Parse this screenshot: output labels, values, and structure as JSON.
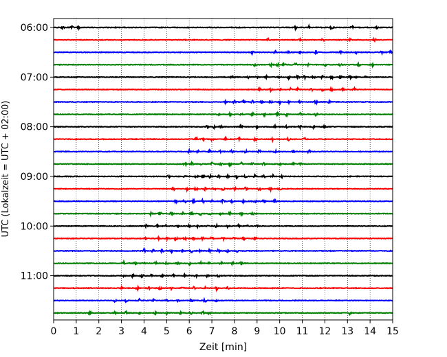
{
  "chart_data": {
    "type": "line",
    "title": "",
    "xlabel": "Zeit  [min]",
    "ylabel": "UTC (Lokalzeit = UTC + 02:00)",
    "xlim": [
      0,
      15
    ],
    "x_ticks": [
      "0",
      "1",
      "2",
      "3",
      "4",
      "5",
      "6",
      "7",
      "8",
      "9",
      "10",
      "11",
      "12",
      "13",
      "14",
      "15"
    ],
    "y_ticks": [
      "06:00",
      "07:00",
      "08:00",
      "09:00",
      "10:00",
      "11:00"
    ],
    "grid": "vertical-dotted",
    "trace_colors": [
      "#000000",
      "#ff0000",
      "#0000ff",
      "#008000"
    ],
    "trace_interval_min": 15,
    "traces": [
      {
        "start": "06:00",
        "color": "#000000",
        "events": [
          0.4,
          0.8,
          1.1,
          10.7,
          11.3,
          12.3,
          13.2,
          14.3
        ]
      },
      {
        "start": "06:15",
        "color": "#ff0000",
        "events": [
          9.5,
          10.9,
          11.9,
          13.1,
          14.2
        ]
      },
      {
        "start": "06:30",
        "color": "#0000ff",
        "events": [
          8.8,
          9.8,
          10.4,
          10.9,
          11.6,
          12.7,
          13.4,
          14.5,
          14.9
        ]
      },
      {
        "start": "06:45",
        "color": "#008000",
        "events": [
          8.9,
          9.6,
          9.9,
          10.2,
          10.7,
          11.3,
          12.0,
          12.7,
          13.5,
          14.1
        ]
      },
      {
        "start": "07:00",
        "color": "#000000",
        "events": [
          7.9,
          8.6,
          9.0,
          9.4,
          10.0,
          10.4,
          10.8,
          11.1,
          11.5,
          11.9,
          12.3,
          12.7,
          13.1,
          13.4,
          13.8
        ]
      },
      {
        "start": "07:15",
        "color": "#ff0000",
        "events": [
          9.1,
          9.6,
          10.0,
          10.5,
          10.8,
          11.4,
          11.9,
          12.3,
          12.8,
          13.3
        ]
      },
      {
        "start": "07:30",
        "color": "#0000ff",
        "events": [
          7.6,
          8.0,
          8.4,
          8.8,
          9.2,
          9.6,
          10.0,
          10.4,
          10.9,
          11.6,
          12.2
        ]
      },
      {
        "start": "07:45",
        "color": "#008000",
        "events": [
          7.3,
          7.8,
          8.3,
          8.8,
          9.3,
          9.9,
          10.3,
          10.9,
          11.6
        ]
      },
      {
        "start": "08:00",
        "color": "#000000",
        "events": [
          6.8,
          7.1,
          7.4,
          8.3,
          9.0,
          9.8,
          10.3,
          10.9,
          11.5,
          12.0
        ]
      },
      {
        "start": "08:15",
        "color": "#ff0000",
        "events": [
          6.3,
          6.6,
          7.0,
          7.6,
          8.2,
          8.9,
          9.7,
          10.4,
          11.1
        ]
      },
      {
        "start": "08:30",
        "color": "#0000ff",
        "events": [
          6.0,
          6.4,
          6.9,
          7.4,
          7.9,
          8.5,
          9.1,
          9.8,
          10.6,
          11.3
        ]
      },
      {
        "start": "08:45",
        "color": "#008000",
        "events": [
          5.8,
          6.1,
          6.5,
          7.0,
          7.4,
          7.8,
          8.3,
          8.8,
          9.3,
          10.0,
          10.6,
          10.9
        ]
      },
      {
        "start": "09:00",
        "color": "#000000",
        "events": [
          5.1,
          5.8,
          6.3,
          6.6,
          6.9,
          7.3,
          7.7,
          8.1,
          8.5,
          8.9,
          9.3,
          9.7,
          10.1
        ]
      },
      {
        "start": "09:15",
        "color": "#ff0000",
        "events": [
          5.3,
          5.9,
          6.3,
          6.7,
          7.1,
          7.5,
          8.0,
          8.5,
          9.1,
          9.6,
          10.0
        ]
      },
      {
        "start": "09:30",
        "color": "#0000ff",
        "events": [
          5.4,
          5.8,
          6.2,
          6.6,
          7.0,
          7.5,
          7.9,
          8.4,
          8.9,
          9.3,
          9.8
        ]
      },
      {
        "start": "09:45",
        "color": "#008000",
        "events": [
          4.3,
          4.7,
          5.2,
          5.7,
          6.1,
          6.5,
          6.9,
          7.4,
          7.8,
          8.3,
          8.8
        ]
      },
      {
        "start": "10:00",
        "color": "#000000",
        "events": [
          4.1,
          4.6,
          5.0,
          5.5,
          6.0,
          6.4,
          6.8,
          7.2,
          7.7,
          8.2,
          8.6,
          9.0
        ]
      },
      {
        "start": "10:15",
        "color": "#ff0000",
        "events": [
          4.1,
          4.6,
          5.0,
          5.4,
          5.8,
          6.2,
          6.6,
          7.0,
          7.5,
          8.0,
          8.4,
          8.9
        ]
      },
      {
        "start": "10:30",
        "color": "#0000ff",
        "events": [
          4.0,
          4.4,
          4.8,
          5.2,
          5.7,
          6.1,
          6.5,
          6.9,
          7.3,
          7.7,
          8.1
        ]
      },
      {
        "start": "10:45",
        "color": "#008000",
        "events": [
          3.1,
          3.6,
          4.0,
          4.5,
          5.0,
          5.5,
          6.0,
          6.5,
          6.9,
          7.4,
          7.9,
          8.3
        ]
      },
      {
        "start": "11:00",
        "color": "#000000",
        "events": [
          3.1,
          3.5,
          3.9,
          4.3,
          4.8,
          5.3,
          5.8,
          6.3,
          6.8,
          7.3
        ]
      },
      {
        "start": "11:15",
        "color": "#ff0000",
        "events": [
          3.0,
          3.7,
          4.2,
          4.7,
          5.2,
          5.7,
          6.2,
          6.7,
          7.2,
          7.7
        ]
      },
      {
        "start": "11:30",
        "color": "#0000ff",
        "events": [
          2.7,
          3.2,
          3.8,
          4.4,
          5.0,
          5.5,
          6.1,
          6.7,
          7.2
        ]
      },
      {
        "start": "11:45",
        "color": "#008000",
        "events": [
          1.6,
          2.7,
          3.2,
          3.8,
          4.5,
          5.0,
          5.6,
          6.1,
          6.6,
          6.9,
          13.1
        ]
      }
    ]
  }
}
